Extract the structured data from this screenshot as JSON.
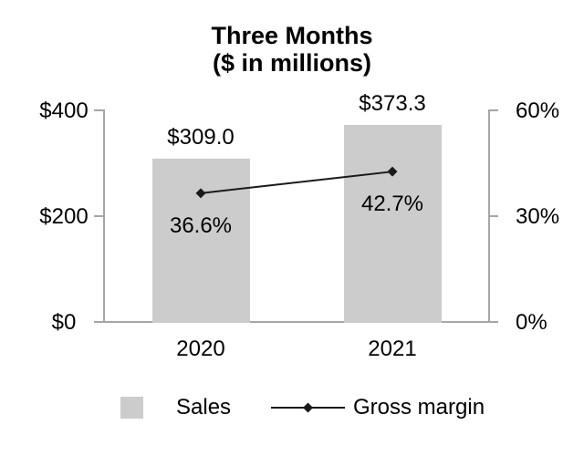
{
  "chart_data": {
    "type": "combo-bar-line",
    "title": "Three Months",
    "subtitle": "($ in millions)",
    "categories": [
      "2020",
      "2021"
    ],
    "series": [
      {
        "name": "Sales",
        "type": "bar",
        "axis": "left",
        "values": [
          309.0,
          373.3
        ],
        "labels": [
          "$309.0",
          "$373.3"
        ],
        "color": "#cccccc"
      },
      {
        "name": "Gross margin",
        "type": "line",
        "axis": "right",
        "values": [
          36.6,
          42.7
        ],
        "labels": [
          "36.6%",
          "42.7%"
        ],
        "color": "#1a1a1a",
        "marker": "diamond"
      }
    ],
    "left_axis": {
      "min": 0,
      "max": 400,
      "ticks": [
        "$400",
        "$200",
        "$0"
      ]
    },
    "right_axis": {
      "min": 0,
      "max": 60,
      "ticks": [
        "60%",
        "30%",
        "0%"
      ]
    },
    "grid": false,
    "legend_position": "bottom",
    "legend": [
      "Sales",
      "Gross margin"
    ]
  },
  "colors": {
    "background": "#ffffff",
    "axis": "#a6a6a6",
    "text": "#000000",
    "bar": "#cccccc",
    "line": "#1a1a1a"
  }
}
